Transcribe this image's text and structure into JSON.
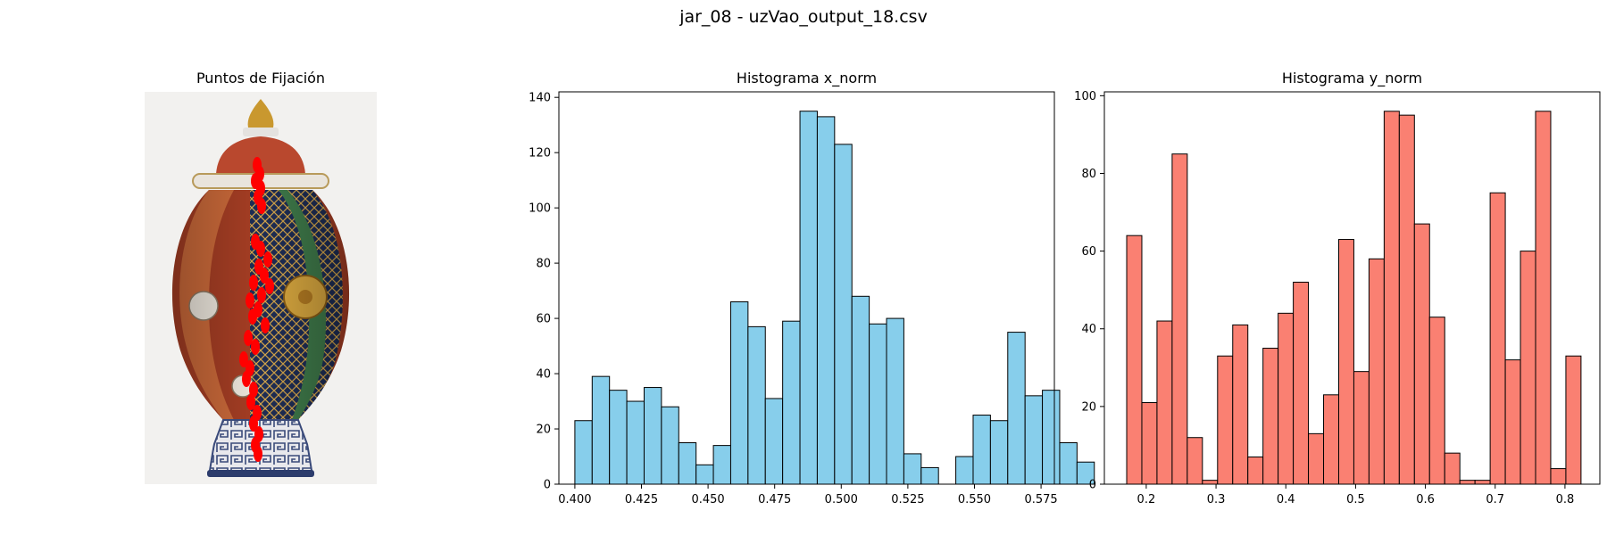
{
  "figure": {
    "suptitle": "jar_08 - uzVao_output_18.csv"
  },
  "image_panel": {
    "title": "Puntos de Fijación",
    "image": "porcelain-jar-icon",
    "marker_color": "#ff0000"
  },
  "chart_data": [
    {
      "type": "bar",
      "title": "Histograma x_norm",
      "color": "#87ceeb",
      "edgecolor": "#000000",
      "bin_start": 0.4,
      "bin_width": 0.0065,
      "values": [
        23,
        39,
        34,
        30,
        35,
        28,
        15,
        7,
        14,
        66,
        57,
        31,
        59,
        135,
        133,
        123,
        68,
        58,
        60,
        11,
        6,
        0,
        10,
        25,
        23,
        55,
        32,
        34,
        15,
        8
      ],
      "xlim": [
        0.394,
        0.58
      ],
      "ylim": [
        0,
        142
      ],
      "xticks": [
        "0.400",
        "0.425",
        "0.450",
        "0.475",
        "0.500",
        "0.525",
        "0.550",
        "0.575"
      ],
      "yticks": [
        "0",
        "20",
        "40",
        "60",
        "80",
        "100",
        "120",
        "140"
      ]
    },
    {
      "type": "bar",
      "title": "Histograma y_norm",
      "color": "#fa8072",
      "edgecolor": "#000000",
      "bin_start": 0.172,
      "bin_width": 0.0217,
      "values": [
        64,
        21,
        42,
        85,
        12,
        1,
        33,
        41,
        7,
        35,
        44,
        52,
        13,
        23,
        63,
        29,
        58,
        96,
        95,
        67,
        43,
        8,
        1,
        1,
        75,
        32,
        60,
        96,
        4,
        33
      ],
      "xlim": [
        0.14,
        0.85
      ],
      "ylim": [
        0,
        101
      ],
      "xticks": [
        "0.2",
        "0.3",
        "0.4",
        "0.5",
        "0.6",
        "0.7",
        "0.8"
      ],
      "yticks": [
        "0",
        "20",
        "40",
        "60",
        "80",
        "100"
      ]
    }
  ]
}
